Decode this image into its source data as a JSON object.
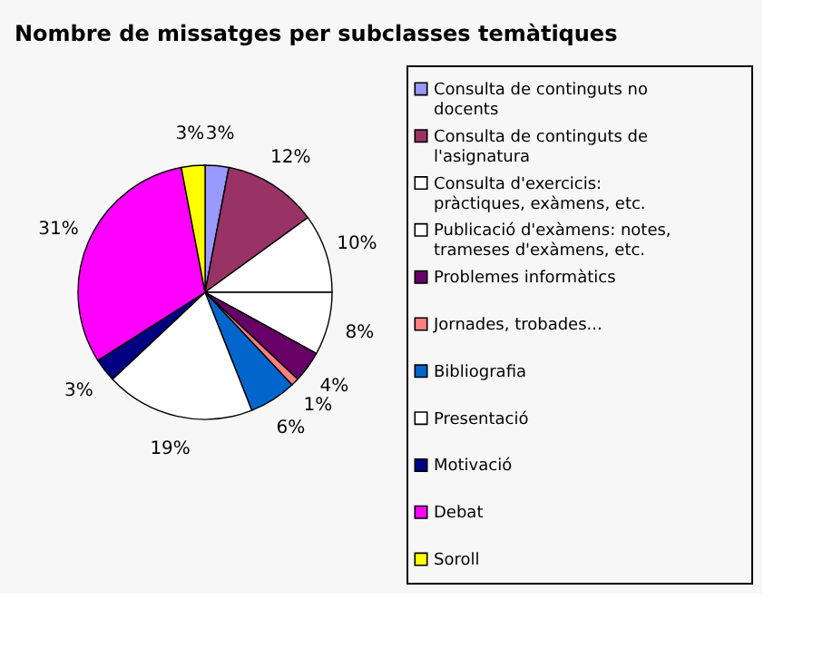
{
  "chart_data": {
    "type": "pie",
    "title": "Nombre de missatges per subclasses temàtiques",
    "categories": [
      "Consulta de continguts no docents",
      "Consulta de continguts de l'asignatura",
      "Consulta d'exercicis: pràctiques, exàmens, etc.",
      "Publicació d'exàmens: notes, trameses d'exàmens, etc.",
      "Problemes informàtics",
      "Jornades, trobades...",
      "Bibliografia",
      "Presentació",
      "Motivació",
      "Debat",
      "Soroll"
    ],
    "values": [
      3,
      12,
      10,
      8,
      4,
      1,
      6,
      19,
      3,
      31,
      3
    ],
    "colors": [
      "#9999ff",
      "#993366",
      "#ffffff",
      "#ffffff",
      "#660066",
      "#ff8080",
      "#0066cc",
      "#ffffff",
      "#000080",
      "#ff00ff",
      "#ffff00"
    ],
    "value_labels": [
      "3%",
      "12%",
      "10%",
      "8%",
      "4%",
      "1%",
      "6%",
      "19%",
      "3%",
      "31%",
      "3%"
    ],
    "legend": "right"
  }
}
